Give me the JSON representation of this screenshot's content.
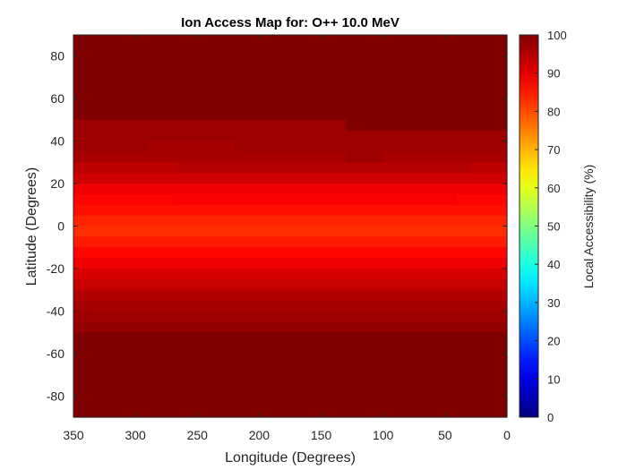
{
  "chart_data": {
    "type": "heatmap",
    "title": "Ion Access Map for: O++ 10.0 MeV",
    "xlabel": "Longitude (Degrees)",
    "ylabel": "Latitude (Degrees)",
    "colorbar_label": "Local Accessibility (%)",
    "colormap": "jet",
    "xlim": [
      350,
      0
    ],
    "ylim": [
      -90,
      90
    ],
    "clim": [
      0,
      100
    ],
    "x_ticks": [
      "350",
      "300",
      "250",
      "200",
      "150",
      "100",
      "50",
      "0"
    ],
    "y_ticks": [
      "80",
      "60",
      "40",
      "20",
      "0",
      "-20",
      "-40",
      "-60",
      "-80"
    ],
    "colorbar_ticks": [
      "100",
      "90",
      "80",
      "70",
      "60",
      "50",
      "40",
      "30",
      "20",
      "10",
      "0"
    ],
    "bands": [
      {
        "lat": [
          50,
          90
        ],
        "segments": [
          [
            350,
            0,
            100
          ]
        ]
      },
      {
        "lat": [
          45,
          50
        ],
        "segments": [
          [
            350,
            130,
            97
          ],
          [
            130,
            0,
            100
          ]
        ]
      },
      {
        "lat": [
          40,
          45
        ],
        "segments": [
          [
            350,
            0,
            97
          ]
        ]
      },
      {
        "lat": [
          35,
          40
        ],
        "segments": [
          [
            350,
            290,
            97
          ],
          [
            290,
            220,
            96
          ],
          [
            220,
            0,
            97
          ]
        ]
      },
      {
        "lat": [
          30,
          35
        ],
        "segments": [
          [
            350,
            130,
            96
          ],
          [
            130,
            100,
            97
          ],
          [
            100,
            0,
            96
          ]
        ]
      },
      {
        "lat": [
          25,
          30
        ],
        "segments": [
          [
            350,
            265,
            94
          ],
          [
            265,
            30,
            95
          ],
          [
            30,
            0,
            94
          ]
        ]
      },
      {
        "lat": [
          20,
          25
        ],
        "segments": [
          [
            350,
            0,
            92
          ]
        ]
      },
      {
        "lat": [
          15,
          20
        ],
        "segments": [
          [
            350,
            0,
            89
          ]
        ]
      },
      {
        "lat": [
          10,
          15
        ],
        "segments": [
          [
            350,
            270,
            87
          ],
          [
            270,
            40,
            88
          ],
          [
            40,
            0,
            87
          ]
        ]
      },
      {
        "lat": [
          5,
          10
        ],
        "segments": [
          [
            350,
            0,
            86
          ]
        ]
      },
      {
        "lat": [
          0,
          5
        ],
        "segments": [
          [
            350,
            0,
            84
          ]
        ]
      },
      {
        "lat": [
          -5,
          0
        ],
        "segments": [
          [
            350,
            0,
            83
          ]
        ]
      },
      {
        "lat": [
          -10,
          -5
        ],
        "segments": [
          [
            350,
            0,
            85
          ]
        ]
      },
      {
        "lat": [
          -15,
          -10
        ],
        "segments": [
          [
            350,
            0,
            87
          ]
        ]
      },
      {
        "lat": [
          -20,
          -15
        ],
        "segments": [
          [
            350,
            0,
            89
          ]
        ]
      },
      {
        "lat": [
          -25,
          -20
        ],
        "segments": [
          [
            350,
            0,
            91
          ]
        ]
      },
      {
        "lat": [
          -30,
          -25
        ],
        "segments": [
          [
            350,
            0,
            93
          ]
        ]
      },
      {
        "lat": [
          -35,
          -30
        ],
        "segments": [
          [
            350,
            0,
            95
          ]
        ]
      },
      {
        "lat": [
          -40,
          -35
        ],
        "segments": [
          [
            350,
            0,
            96
          ]
        ]
      },
      {
        "lat": [
          -45,
          -40
        ],
        "segments": [
          [
            350,
            0,
            97
          ]
        ]
      },
      {
        "lat": [
          -50,
          -45
        ],
        "segments": [
          [
            350,
            0,
            98
          ]
        ]
      },
      {
        "lat": [
          -90,
          -50
        ],
        "segments": [
          [
            350,
            0,
            100
          ]
        ]
      }
    ]
  }
}
